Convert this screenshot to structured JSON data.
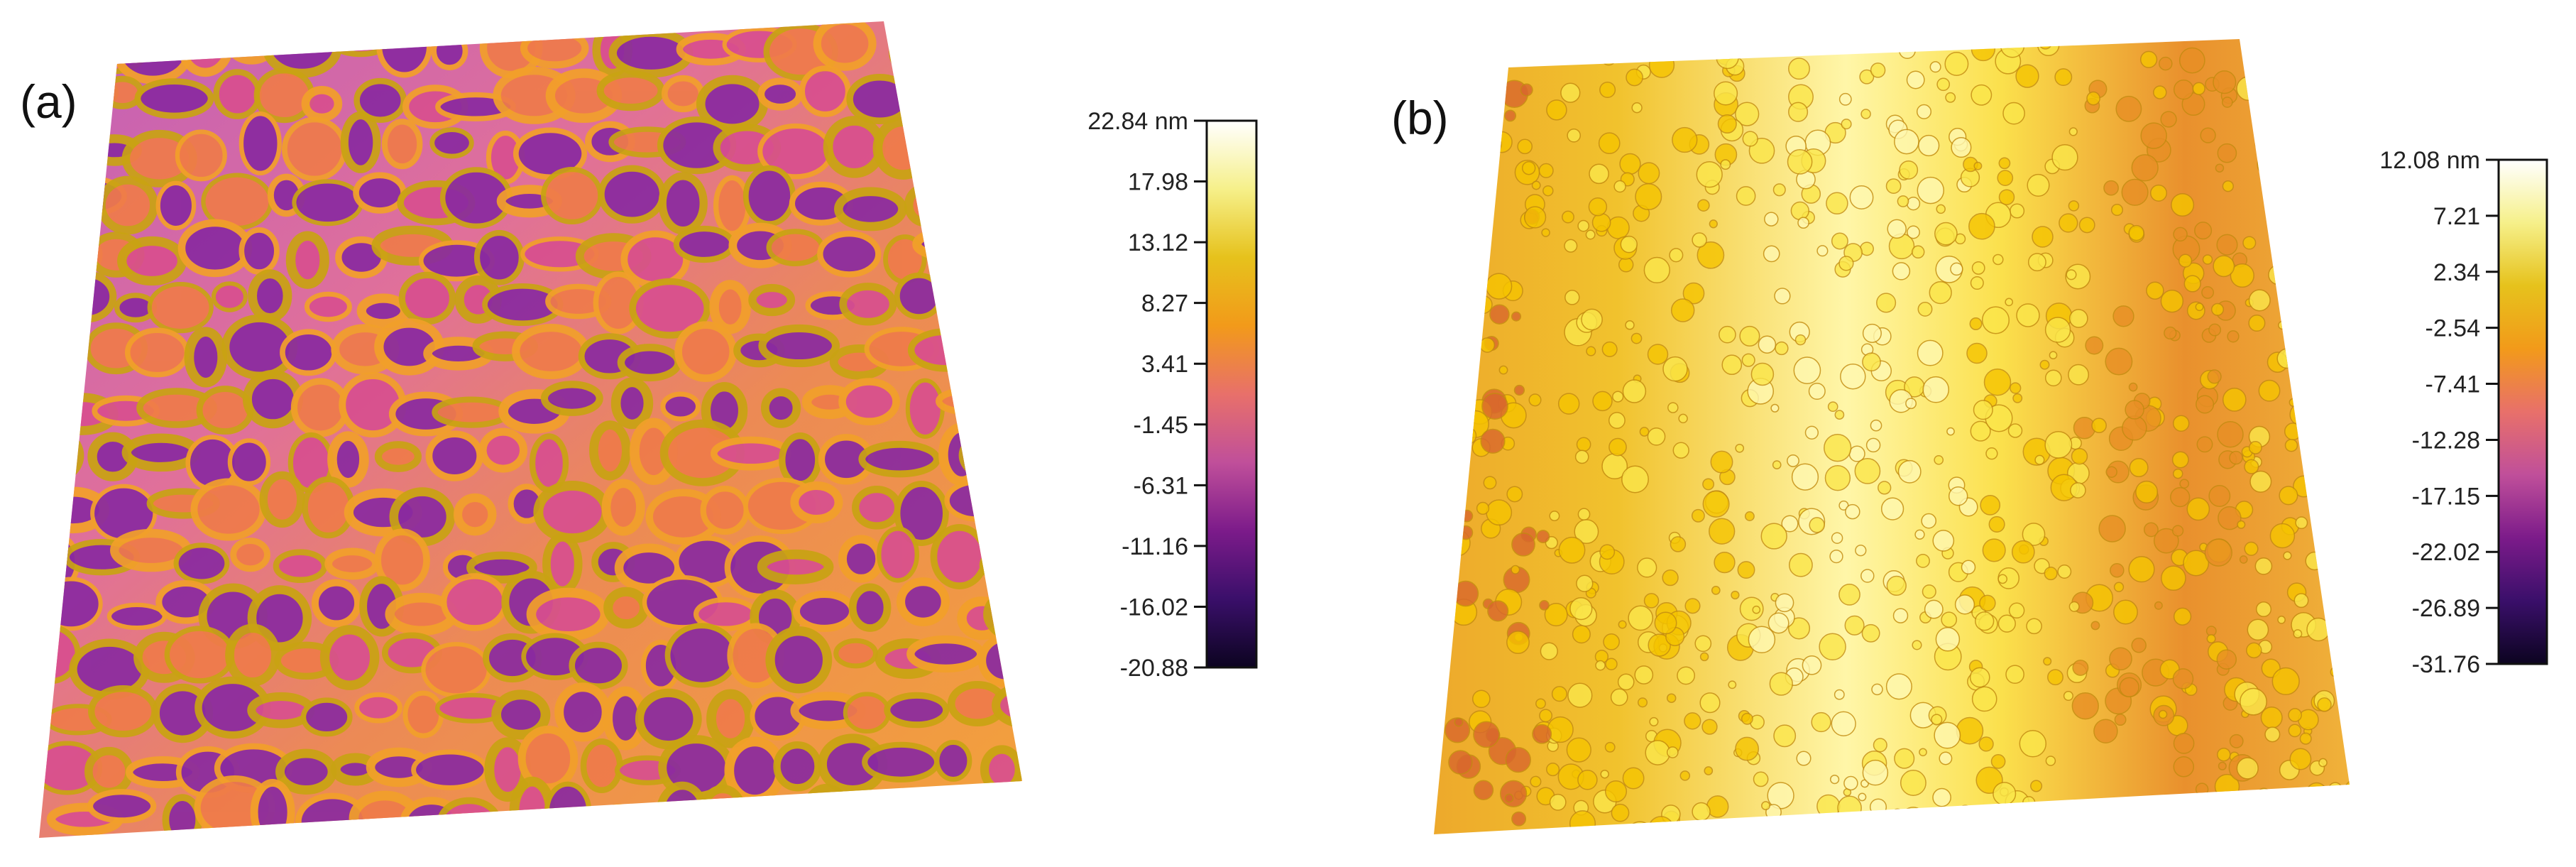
{
  "panels": [
    {
      "label": "(a)",
      "colorbar": {
        "ticks": [
          "22.84 nm",
          "17.98",
          "13.12",
          "8.27",
          "3.41",
          "-1.45",
          "-6.31",
          "-11.16",
          "-16.02",
          "-20.88"
        ],
        "colors": [
          "#ffffff",
          "#f6f08a",
          "#e6c21c",
          "#f29a1a",
          "#e8706a",
          "#c04f9a",
          "#7c1b8a",
          "#3a0f6a",
          "#0c0420"
        ]
      },
      "surface_colors": [
        "#8a2aa0",
        "#d84f8f",
        "#ef7b4a",
        "#f2a02a",
        "#c9a313",
        "#e0c43a"
      ]
    },
    {
      "label": "(b)",
      "colorbar": {
        "ticks": [
          "12.08 nm",
          "7.21",
          "2.34",
          "-2.54",
          "-7.41",
          "-12.28",
          "-17.15",
          "-22.02",
          "-26.89",
          "-31.76"
        ],
        "colors": [
          "#ffffff",
          "#f6f08a",
          "#e6c21c",
          "#f29a1a",
          "#e8706a",
          "#c04f9a",
          "#7c1b8a",
          "#3a0f6a",
          "#0c0420"
        ]
      },
      "surface_colors": [
        "#f5c400",
        "#fbe64a",
        "#fff8b0",
        "#e88f25",
        "#d9672d"
      ]
    }
  ]
}
